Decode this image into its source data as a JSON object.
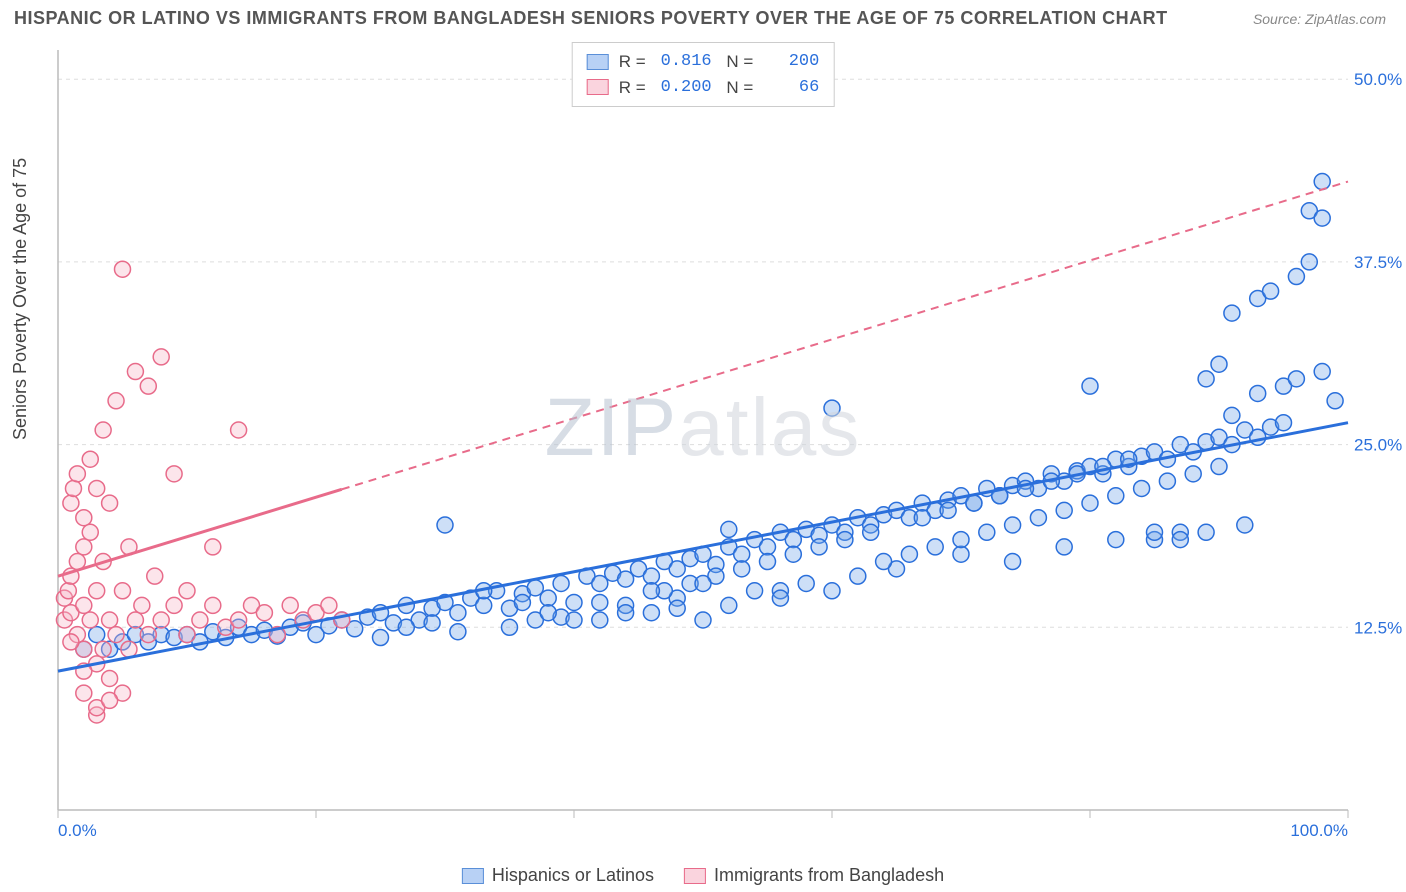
{
  "header": {
    "title": "HISPANIC OR LATINO VS IMMIGRANTS FROM BANGLADESH SENIORS POVERTY OVER THE AGE OF 75 CORRELATION CHART",
    "source": "Source: ZipAtlas.com"
  },
  "ylabel": "Seniors Poverty Over the Age of 75",
  "watermark_a": "ZIP",
  "watermark_b": "atlas",
  "chart": {
    "type": "scatter",
    "xlim": [
      0,
      100
    ],
    "ylim": [
      0,
      52
    ],
    "x_ticks": [
      0,
      20,
      40,
      60,
      80,
      100
    ],
    "x_tick_labels": {
      "0": "0.0%",
      "100": "100.0%"
    },
    "y_ticks": [
      12.5,
      25.0,
      37.5,
      50.0
    ],
    "y_tick_labels": [
      "12.5%",
      "25.0%",
      "37.5%",
      "50.0%"
    ],
    "grid_color": "#dddddd",
    "axis_color": "#bbbbbb",
    "background_color": "#ffffff",
    "marker_radius": 8,
    "marker_fill_opacity": 0.35,
    "marker_stroke_width": 1.5,
    "trend_line_width": 3,
    "series": [
      {
        "name": "Hispanics or Latinos",
        "color": "#6fa3e8",
        "stroke": "#2a6fdb",
        "R": "0.816",
        "N": "200",
        "trend": {
          "x1": 0,
          "y1": 9.5,
          "x2": 100,
          "y2": 26.5,
          "solid_until": 100
        },
        "points": [
          [
            2,
            11
          ],
          [
            3,
            12
          ],
          [
            4,
            11
          ],
          [
            5,
            11.5
          ],
          [
            6,
            12
          ],
          [
            7,
            11.5
          ],
          [
            8,
            12
          ],
          [
            9,
            11.8
          ],
          [
            10,
            12
          ],
          [
            11,
            11.5
          ],
          [
            12,
            12.2
          ],
          [
            13,
            11.8
          ],
          [
            14,
            12.5
          ],
          [
            15,
            12
          ],
          [
            16,
            12.3
          ],
          [
            17,
            11.9
          ],
          [
            18,
            12.5
          ],
          [
            19,
            12.8
          ],
          [
            20,
            12
          ],
          [
            21,
            12.6
          ],
          [
            22,
            13
          ],
          [
            23,
            12.4
          ],
          [
            24,
            13.2
          ],
          [
            25,
            13.5
          ],
          [
            26,
            12.8
          ],
          [
            27,
            14
          ],
          [
            28,
            13
          ],
          [
            29,
            13.8
          ],
          [
            30,
            14.2
          ],
          [
            30,
            19.5
          ],
          [
            31,
            13.5
          ],
          [
            32,
            14.5
          ],
          [
            33,
            14
          ],
          [
            34,
            15
          ],
          [
            35,
            13.8
          ],
          [
            36,
            14.8
          ],
          [
            37,
            15.2
          ],
          [
            38,
            14.5
          ],
          [
            39,
            15.5
          ],
          [
            40,
            14.2
          ],
          [
            41,
            16
          ],
          [
            42,
            15.5
          ],
          [
            43,
            16.2
          ],
          [
            44,
            15.8
          ],
          [
            45,
            16.5
          ],
          [
            46,
            16
          ],
          [
            47,
            17
          ],
          [
            48,
            16.5
          ],
          [
            49,
            17.2
          ],
          [
            50,
            17.5
          ],
          [
            51,
            16.8
          ],
          [
            52,
            18
          ],
          [
            52,
            19.2
          ],
          [
            53,
            17.5
          ],
          [
            54,
            18.5
          ],
          [
            55,
            18
          ],
          [
            56,
            19
          ],
          [
            56,
            15
          ],
          [
            57,
            18.5
          ],
          [
            58,
            19.2
          ],
          [
            59,
            18.8
          ],
          [
            60,
            19.5
          ],
          [
            60,
            27.5
          ],
          [
            61,
            19
          ],
          [
            62,
            20
          ],
          [
            63,
            19.5
          ],
          [
            64,
            20.2
          ],
          [
            65,
            16.5
          ],
          [
            65,
            20.5
          ],
          [
            66,
            20
          ],
          [
            67,
            21
          ],
          [
            68,
            20.5
          ],
          [
            69,
            21.2
          ],
          [
            70,
            17.5
          ],
          [
            70,
            21.5
          ],
          [
            71,
            21
          ],
          [
            72,
            22
          ],
          [
            73,
            21.5
          ],
          [
            74,
            22.2
          ],
          [
            74,
            17
          ],
          [
            75,
            22.5
          ],
          [
            76,
            22
          ],
          [
            77,
            23
          ],
          [
            78,
            22.5
          ],
          [
            78,
            18
          ],
          [
            79,
            23.2
          ],
          [
            80,
            23.5
          ],
          [
            80,
            29
          ],
          [
            81,
            23
          ],
          [
            82,
            24
          ],
          [
            82,
            18.5
          ],
          [
            83,
            23.5
          ],
          [
            84,
            24.2
          ],
          [
            85,
            24.5
          ],
          [
            85,
            18.5
          ],
          [
            86,
            24
          ],
          [
            87,
            25
          ],
          [
            87,
            19
          ],
          [
            88,
            24.5
          ],
          [
            89,
            25.2
          ],
          [
            89,
            29.5
          ],
          [
            90,
            25.5
          ],
          [
            90,
            30.5
          ],
          [
            91,
            25
          ],
          [
            91,
            34
          ],
          [
            92,
            26
          ],
          [
            92,
            19.5
          ],
          [
            93,
            25.5
          ],
          [
            93,
            35
          ],
          [
            94,
            26.2
          ],
          [
            94,
            35.5
          ],
          [
            95,
            26.5
          ],
          [
            95,
            29
          ],
          [
            96,
            29.5
          ],
          [
            96,
            36.5
          ],
          [
            97,
            37.5
          ],
          [
            97,
            41
          ],
          [
            98,
            40.5
          ],
          [
            98,
            43
          ],
          [
            98,
            30
          ],
          [
            99,
            28
          ],
          [
            42,
            13
          ],
          [
            44,
            14
          ],
          [
            46,
            13.5
          ],
          [
            48,
            14.5
          ],
          [
            50,
            13
          ],
          [
            35,
            12.5
          ],
          [
            37,
            13
          ],
          [
            39,
            13.2
          ],
          [
            52,
            14
          ],
          [
            54,
            15
          ],
          [
            56,
            14.5
          ],
          [
            58,
            15.5
          ],
          [
            60,
            15
          ],
          [
            62,
            16
          ],
          [
            64,
            17
          ],
          [
            66,
            17.5
          ],
          [
            68,
            18
          ],
          [
            70,
            18.5
          ],
          [
            72,
            19
          ],
          [
            74,
            19.5
          ],
          [
            76,
            20
          ],
          [
            78,
            20.5
          ],
          [
            80,
            21
          ],
          [
            82,
            21.5
          ],
          [
            84,
            22
          ],
          [
            86,
            22.5
          ],
          [
            88,
            23
          ],
          [
            90,
            23.5
          ],
          [
            47,
            15
          ],
          [
            49,
            15.5
          ],
          [
            51,
            16
          ],
          [
            53,
            16.5
          ],
          [
            55,
            17
          ],
          [
            57,
            17.5
          ],
          [
            59,
            18
          ],
          [
            61,
            18.5
          ],
          [
            63,
            19
          ],
          [
            67,
            20
          ],
          [
            69,
            20.5
          ],
          [
            71,
            21
          ],
          [
            73,
            21.5
          ],
          [
            75,
            22
          ],
          [
            77,
            22.5
          ],
          [
            79,
            23
          ],
          [
            81,
            23.5
          ],
          [
            83,
            24
          ],
          [
            85,
            19
          ],
          [
            87,
            18.5
          ],
          [
            89,
            19
          ],
          [
            91,
            27
          ],
          [
            93,
            28.5
          ],
          [
            33,
            15
          ],
          [
            36,
            14.2
          ],
          [
            38,
            13.5
          ],
          [
            40,
            13
          ],
          [
            42,
            14.2
          ],
          [
            44,
            13.5
          ],
          [
            46,
            15
          ],
          [
            48,
            13.8
          ],
          [
            50,
            15.5
          ],
          [
            25,
            11.8
          ],
          [
            27,
            12.5
          ],
          [
            29,
            12.8
          ],
          [
            31,
            12.2
          ]
        ]
      },
      {
        "name": "Immigrants from Bangladesh",
        "color": "#f7b5c5",
        "stroke": "#e86b8a",
        "R": "0.200",
        "N": "  66",
        "trend": {
          "x1": 0,
          "y1": 16,
          "x2": 100,
          "y2": 43,
          "solid_until": 22
        },
        "points": [
          [
            0.5,
            13
          ],
          [
            0.5,
            14.5
          ],
          [
            0.8,
            15
          ],
          [
            1,
            13.5
          ],
          [
            1,
            16
          ],
          [
            1,
            21
          ],
          [
            1.2,
            22
          ],
          [
            1.5,
            12
          ],
          [
            1.5,
            17
          ],
          [
            1.5,
            23
          ],
          [
            2,
            8
          ],
          [
            2,
            11
          ],
          [
            2,
            14
          ],
          [
            2,
            18
          ],
          [
            2,
            20
          ],
          [
            2.5,
            13
          ],
          [
            2.5,
            19
          ],
          [
            2.5,
            24
          ],
          [
            3,
            6.5
          ],
          [
            3,
            10
          ],
          [
            3,
            15
          ],
          [
            3,
            22
          ],
          [
            3.5,
            11
          ],
          [
            3.5,
            17
          ],
          [
            3.5,
            26
          ],
          [
            4,
            9
          ],
          [
            4,
            13
          ],
          [
            4,
            21
          ],
          [
            4.5,
            12
          ],
          [
            4.5,
            28
          ],
          [
            5,
            8
          ],
          [
            5,
            15
          ],
          [
            5,
            37
          ],
          [
            5.5,
            11
          ],
          [
            5.5,
            18
          ],
          [
            6,
            13
          ],
          [
            6,
            30
          ],
          [
            6.5,
            14
          ],
          [
            7,
            12
          ],
          [
            7,
            29
          ],
          [
            7.5,
            16
          ],
          [
            8,
            13
          ],
          [
            8,
            31
          ],
          [
            9,
            14
          ],
          [
            9,
            23
          ],
          [
            10,
            12
          ],
          [
            10,
            15
          ],
          [
            11,
            13
          ],
          [
            12,
            14
          ],
          [
            12,
            18
          ],
          [
            13,
            12.5
          ],
          [
            14,
            13
          ],
          [
            14,
            26
          ],
          [
            15,
            14
          ],
          [
            16,
            13.5
          ],
          [
            17,
            12
          ],
          [
            18,
            14
          ],
          [
            19,
            13
          ],
          [
            20,
            13.5
          ],
          [
            21,
            14
          ],
          [
            22,
            13
          ],
          [
            3,
            7
          ],
          [
            2,
            9.5
          ],
          [
            4,
            7.5
          ],
          [
            1,
            11.5
          ]
        ]
      }
    ]
  },
  "legend_top": [
    {
      "swatch_fill": "#b8d1f5",
      "swatch_stroke": "#5a8fd8",
      "r": "0.816",
      "n": "200"
    },
    {
      "swatch_fill": "#fad4de",
      "swatch_stroke": "#e86b8a",
      "r": "0.200",
      "n": "  66"
    }
  ],
  "legend_bottom": [
    {
      "swatch_fill": "#b8d1f5",
      "swatch_stroke": "#5a8fd8",
      "label": "Hispanics or Latinos"
    },
    {
      "swatch_fill": "#fad4de",
      "swatch_stroke": "#e86b8a",
      "label": "Immigrants from Bangladesh"
    }
  ]
}
